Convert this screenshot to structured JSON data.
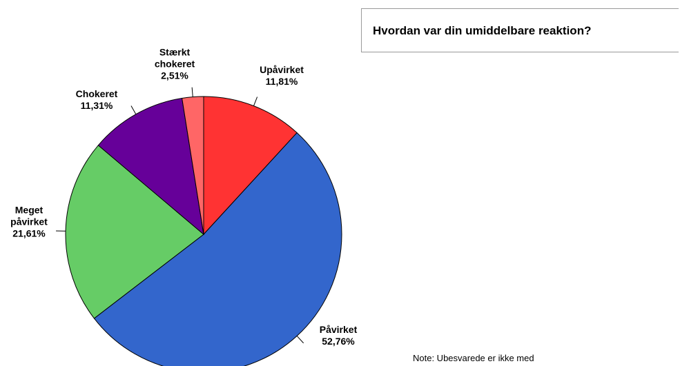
{
  "chart_data": {
    "type": "pie",
    "title": "Hvordan var din umiddelbare reaktion?",
    "note": "Note: Ubesvarede er ikke med",
    "categories": [
      "Upåvirket",
      "Påvirket",
      "Meget påvirket",
      "Chokeret",
      "Stærkt chokeret"
    ],
    "values": [
      11.81,
      52.76,
      21.61,
      11.31,
      2.51
    ],
    "value_labels": [
      "11,81%",
      "52,76%",
      "21,61%",
      "11,31%",
      "2,51%"
    ],
    "colors": [
      "#ff3333",
      "#3366cc",
      "#66cc66",
      "#660099",
      "#ff6666"
    ]
  }
}
